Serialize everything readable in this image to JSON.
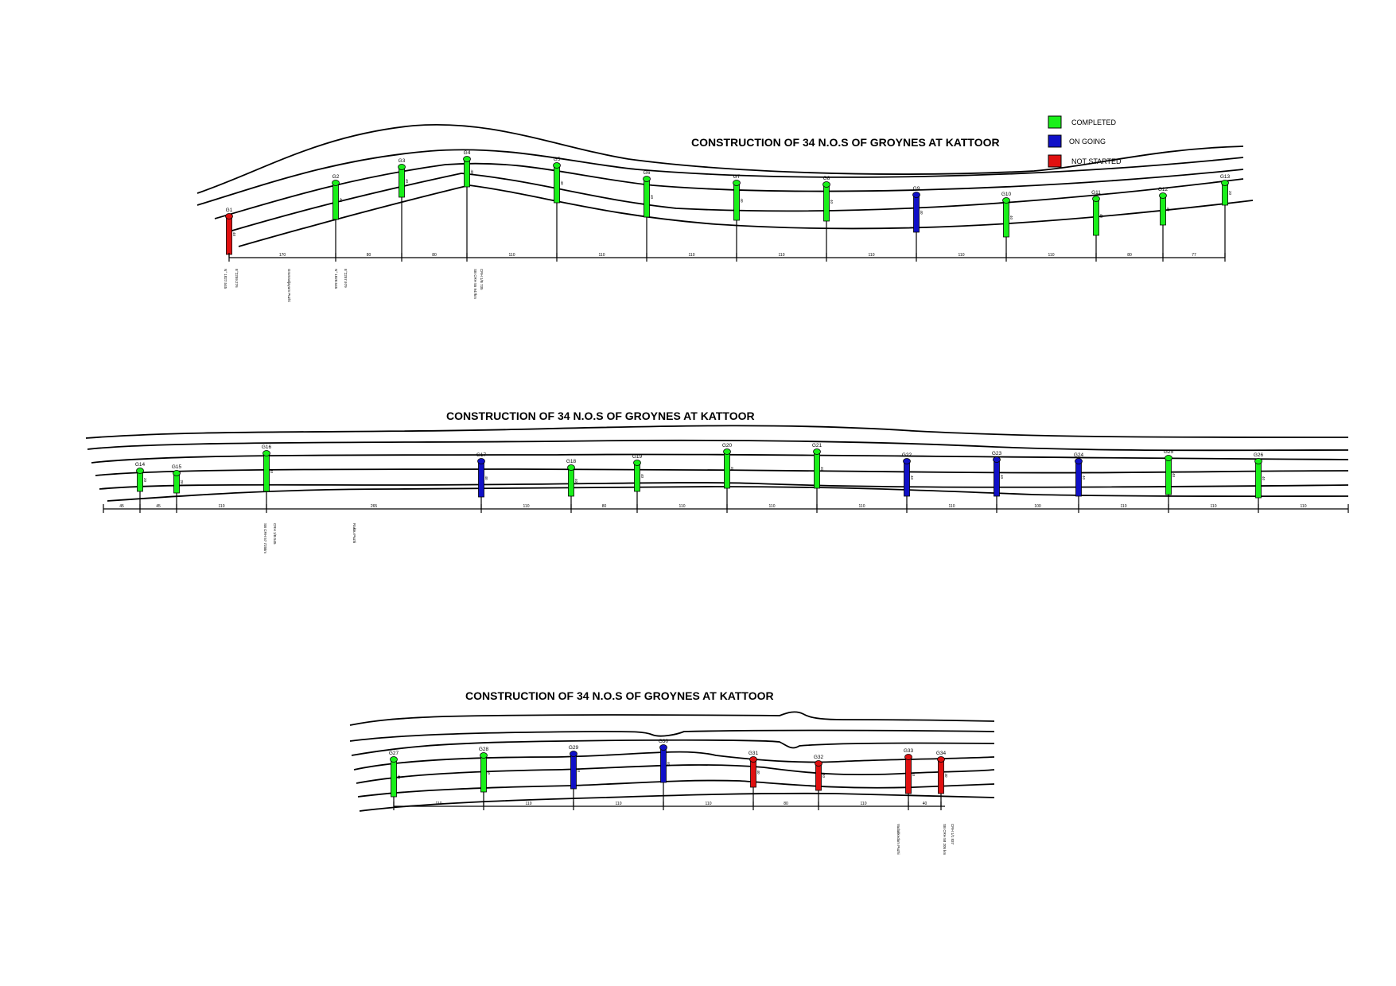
{
  "status_colors": {
    "completed": "#19f019",
    "ongoing": "#1010c8",
    "not_started": "#e01010"
  },
  "legend": [
    {
      "label": "COMPLETED",
      "status": "completed"
    },
    {
      "label": "ON GOING",
      "status": "ongoing"
    },
    {
      "label": "NOT STARTED",
      "status": "not_started"
    }
  ],
  "panels": [
    {
      "title": "CONSTRUCTION OF 34 N.O.S OF GROYNES AT KATTOOR",
      "groynes": [
        {
          "label": "G1",
          "status": "not_started",
          "length": "40"
        },
        {
          "label": "G2",
          "status": "completed",
          "length": "40"
        },
        {
          "label": "G3",
          "status": "completed",
          "length": "40"
        },
        {
          "label": "G4",
          "status": "completed",
          "length": "40"
        },
        {
          "label": "G5",
          "status": "completed",
          "length": "40"
        },
        {
          "label": "G6",
          "status": "completed",
          "length": "40"
        },
        {
          "label": "G7",
          "status": "completed",
          "length": "40"
        },
        {
          "label": "G8",
          "status": "completed",
          "length": "40"
        },
        {
          "label": "G9",
          "status": "ongoing",
          "length": "40"
        },
        {
          "label": "G10",
          "status": "completed",
          "length": "40"
        },
        {
          "label": "G11",
          "status": "completed",
          "length": "40"
        },
        {
          "label": "G12",
          "status": "completed",
          "length": "40"
        },
        {
          "label": "G13",
          "status": "completed",
          "length": "20"
        }
      ],
      "spacings": [
        "170",
        "80",
        "80",
        "110",
        "110",
        "110",
        "110",
        "110",
        "110",
        "110",
        "80",
        "77"
      ],
      "notes": [
        {
          "lines": [
            "N° 1827.545",
            "E°2259.276"
          ]
        },
        {
          "lines": [
            "Gramavijayam Puzhi"
          ]
        },
        {
          "lines": [
            "N° 1828.545",
            "E°2257.979"
          ]
        },
        {
          "lines": [
            "CRH 1/B 735",
            "SB CRH 55 947km"
          ]
        }
      ]
    },
    {
      "title": "CONSTRUCTION OF 34 N.O.S OF GROYNES AT KATTOOR",
      "groynes": [
        {
          "label": "G14",
          "status": "completed",
          "length": "20"
        },
        {
          "label": "G15",
          "status": "completed",
          "length": "20"
        },
        {
          "label": "G16",
          "status": "completed",
          "length": "40"
        },
        {
          "label": "G17",
          "status": "ongoing",
          "length": "40"
        },
        {
          "label": "G18",
          "status": "completed",
          "length": "40"
        },
        {
          "label": "G19",
          "status": "completed",
          "length": "40"
        },
        {
          "label": "G20",
          "status": "completed",
          "length": "40"
        },
        {
          "label": "G21",
          "status": "completed",
          "length": "40"
        },
        {
          "label": "G22",
          "status": "ongoing",
          "length": "40"
        },
        {
          "label": "G23",
          "status": "ongoing",
          "length": "40"
        },
        {
          "label": "G24",
          "status": "ongoing",
          "length": "40"
        },
        {
          "label": "G25",
          "status": "completed",
          "length": "40"
        },
        {
          "label": "G26",
          "status": "completed",
          "length": "40"
        }
      ],
      "spacings": [
        "45",
        "45",
        "110",
        "265",
        "110",
        "80",
        "110",
        "110",
        "110",
        "110",
        "100",
        "110",
        "110",
        "110"
      ],
      "notes": [
        {
          "lines": [
            "CRH 1/B 545",
            "SB CRH 57 725km"
          ]
        },
        {
          "lines": [
            "Rakku Puzhi"
          ]
        }
      ]
    },
    {
      "title": "CONSTRUCTION OF 34 N.O.S OF GROYNES AT KATTOOR",
      "groynes": [
        {
          "label": "G27",
          "status": "completed",
          "length": "40"
        },
        {
          "label": "G28",
          "status": "completed",
          "length": "40"
        },
        {
          "label": "G29",
          "status": "ongoing",
          "length": "40"
        },
        {
          "label": "G30",
          "status": "ongoing",
          "length": "40"
        },
        {
          "label": "G31",
          "status": "not_started",
          "length": "40"
        },
        {
          "label": "G32",
          "status": "not_started",
          "length": "40"
        },
        {
          "label": "G33",
          "status": "not_started",
          "length": "40"
        },
        {
          "label": "G34",
          "status": "not_started",
          "length": "40"
        }
      ],
      "spacings": [
        "110",
        "110",
        "110",
        "110",
        "80",
        "110",
        "40"
      ],
      "notes": [
        {
          "lines": [
            "Vadakkedam Puzhi"
          ]
        },
        {
          "lines": [
            "CRH 1/1 837",
            "SB CRH 58 205 km"
          ]
        }
      ]
    }
  ]
}
